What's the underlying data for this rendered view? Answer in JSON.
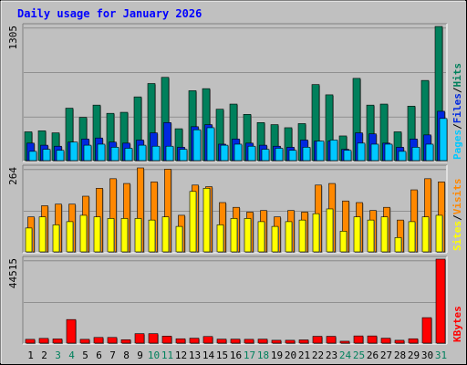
{
  "chart_data": [
    {
      "type": "bar",
      "title": "Daily usage for January 2026",
      "ylabel_max": "1305",
      "legend": [
        "Pages",
        "/",
        "Files",
        "/",
        "Hits"
      ],
      "series_names": [
        "Hits",
        "Files",
        "Pages"
      ],
      "ylim": [
        0,
        1305
      ],
      "categories": [
        "1",
        "2",
        "3",
        "4",
        "5",
        "6",
        "7",
        "8",
        "9",
        "10",
        "11",
        "12",
        "13",
        "14",
        "15",
        "16",
        "17",
        "18",
        "19",
        "20",
        "21",
        "22",
        "23",
        "24",
        "25",
        "26",
        "27",
        "28",
        "29",
        "30",
        "31"
      ],
      "series": [
        {
          "name": "Hits",
          "values": [
            280,
            290,
            270,
            510,
            420,
            540,
            460,
            470,
            620,
            750,
            810,
            310,
            680,
            700,
            500,
            550,
            450,
            370,
            350,
            320,
            360,
            740,
            640,
            240,
            800,
            540,
            550,
            280,
            530,
            780,
            1305
          ]
        },
        {
          "name": "Files",
          "values": [
            170,
            150,
            140,
            180,
            210,
            220,
            180,
            170,
            200,
            270,
            370,
            130,
            330,
            350,
            160,
            210,
            170,
            150,
            140,
            130,
            200,
            190,
            190,
            110,
            270,
            260,
            170,
            130,
            210,
            250,
            480
          ]
        },
        {
          "name": "Pages",
          "values": [
            90,
            110,
            100,
            180,
            150,
            160,
            130,
            120,
            150,
            140,
            140,
            110,
            300,
            320,
            150,
            160,
            140,
            110,
            120,
            100,
            130,
            190,
            200,
            100,
            170,
            160,
            160,
            90,
            130,
            160,
            410
          ]
        }
      ],
      "colors": {
        "Hits": "#00805c",
        "Files": "#0028e0",
        "Pages": "#00c8ff"
      }
    },
    {
      "type": "bar",
      "ylabel_max": "264",
      "legend": [
        "Sites",
        "/",
        "Visits"
      ],
      "series_names": [
        "Visits",
        "Sites"
      ],
      "ylim": [
        0,
        264
      ],
      "categories": [
        "1",
        "2",
        "3",
        "4",
        "5",
        "6",
        "7",
        "8",
        "9",
        "10",
        "11",
        "12",
        "13",
        "14",
        "15",
        "16",
        "17",
        "18",
        "19",
        "20",
        "21",
        "22",
        "23",
        "24",
        "25",
        "26",
        "27",
        "28",
        "29",
        "30",
        "31"
      ],
      "series": [
        {
          "name": "Visits",
          "values": [
            110,
            145,
            150,
            150,
            175,
            200,
            230,
            215,
            264,
            220,
            260,
            115,
            210,
            205,
            155,
            140,
            125,
            130,
            110,
            130,
            125,
            210,
            215,
            160,
            155,
            130,
            140,
            100,
            195,
            230,
            220
          ]
        },
        {
          "name": "Sites",
          "values": [
            75,
            110,
            85,
            95,
            115,
            110,
            105,
            105,
            105,
            100,
            110,
            80,
            190,
            200,
            85,
            105,
            105,
            95,
            80,
            95,
            100,
            120,
            135,
            65,
            110,
            100,
            110,
            45,
            95,
            110,
            115
          ]
        }
      ],
      "colors": {
        "Visits": "#ff8800",
        "Sites": "#ffff00"
      }
    },
    {
      "type": "bar",
      "ylabel_max": "44515",
      "legend": [
        "KBytes"
      ],
      "series_names": [
        "KBytes"
      ],
      "ylim": [
        0,
        44515
      ],
      "categories": [
        "1",
        "2",
        "3",
        "4",
        "5",
        "6",
        "7",
        "8",
        "9",
        "10",
        "11",
        "12",
        "13",
        "14",
        "15",
        "16",
        "17",
        "18",
        "19",
        "20",
        "21",
        "22",
        "23",
        "24",
        "25",
        "26",
        "27",
        "28",
        "29",
        "30",
        "31"
      ],
      "series": [
        {
          "name": "KBytes",
          "values": [
            2000,
            2500,
            2200,
            12500,
            2000,
            3000,
            3000,
            1800,
            5000,
            5000,
            3700,
            2300,
            2600,
            3500,
            2100,
            2100,
            2000,
            2100,
            1500,
            1500,
            1700,
            3600,
            3600,
            1000,
            3800,
            3800,
            2600,
            1500,
            2300,
            13500,
            44515
          ]
        }
      ],
      "colors": {
        "KBytes": "#ff0000"
      }
    }
  ],
  "weekend_days": [
    "3",
    "4",
    "10",
    "11",
    "17",
    "18",
    "24",
    "25",
    "31"
  ],
  "colors": {
    "background": "#c0c0c0",
    "title": "#0000ff",
    "weekday_label": "#000000",
    "weekend_label": "#00805c",
    "gridline": "#808080"
  }
}
